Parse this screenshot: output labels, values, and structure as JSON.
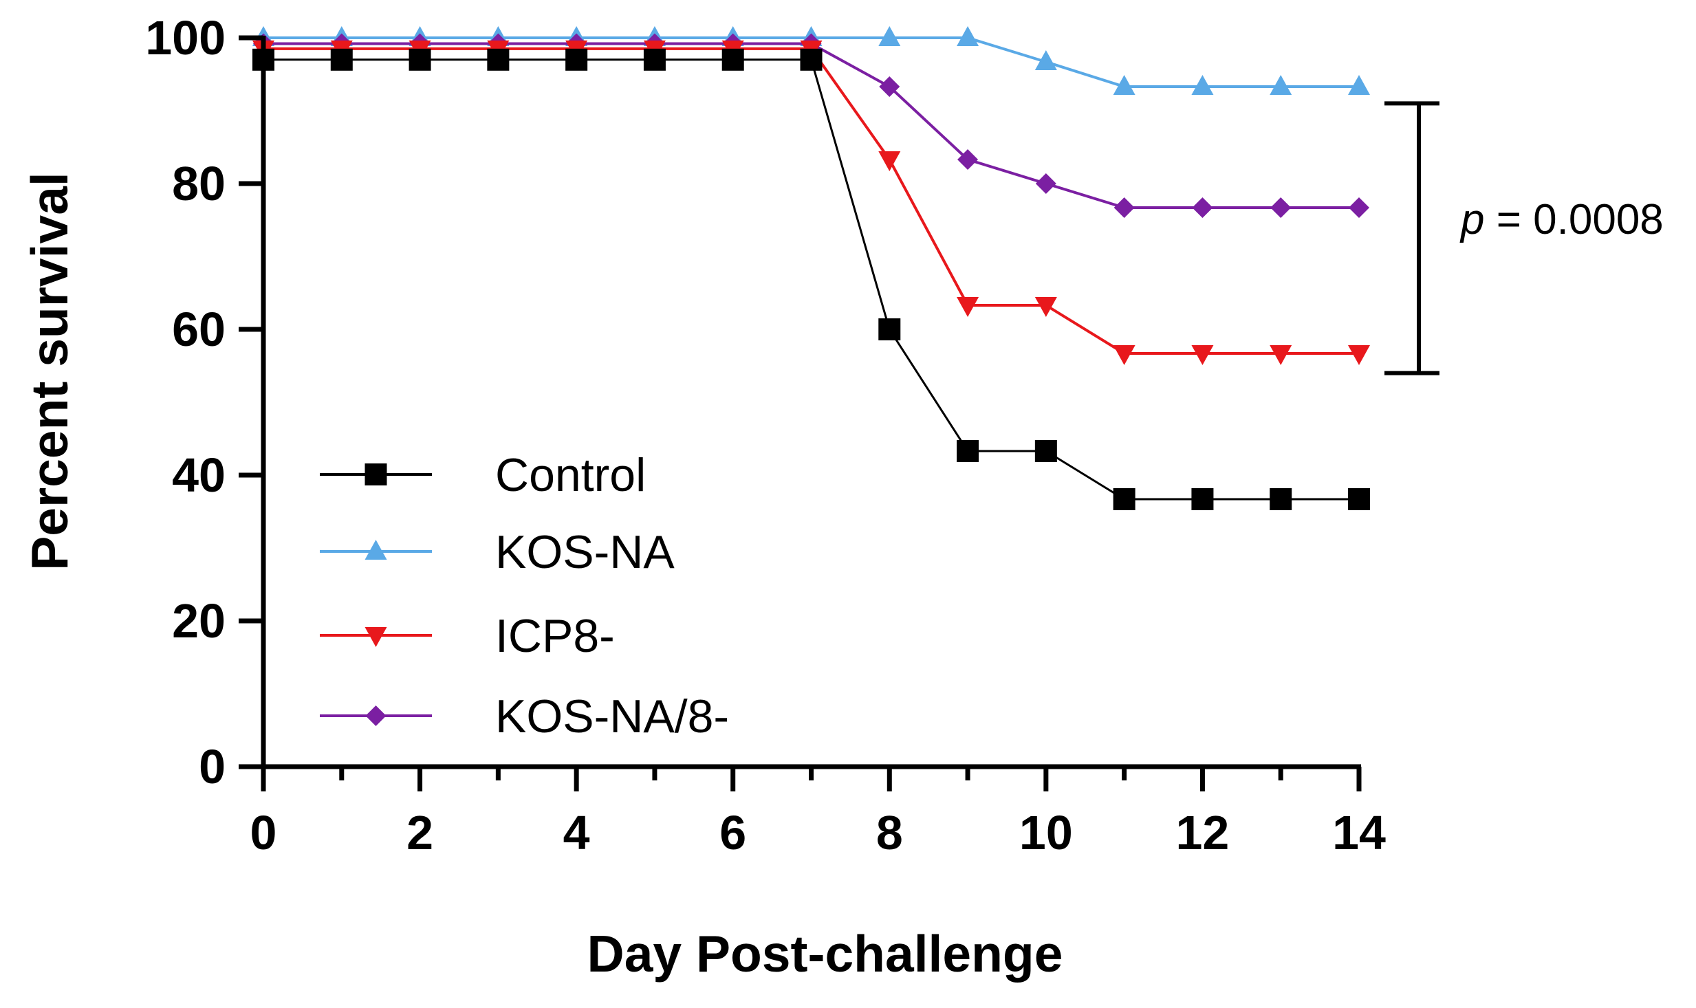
{
  "chart_data": {
    "type": "line",
    "subtype": "survival-step",
    "title": "",
    "xlabel": "Day Post-challenge",
    "ylabel": "Percent survival",
    "xlim": [
      0,
      14
    ],
    "ylim": [
      0,
      100
    ],
    "xticks": [
      0,
      2,
      4,
      6,
      8,
      10,
      12,
      14
    ],
    "yticks": [
      0,
      20,
      40,
      60,
      80,
      100
    ],
    "grid": false,
    "legend_position": "left-center",
    "x": [
      0,
      1,
      2,
      3,
      4,
      5,
      6,
      7,
      8,
      9,
      10,
      11,
      12,
      13,
      14
    ],
    "series": [
      {
        "name": "Control",
        "color": "#000000",
        "marker": "square",
        "values": [
          97,
          97,
          97,
          97,
          97,
          97,
          97,
          97,
          60,
          43.3,
          43.3,
          36.7,
          36.7,
          36.7,
          36.7
        ]
      },
      {
        "name": "KOS-NA",
        "color": "#5aa9e6",
        "marker": "triangle-up",
        "values": [
          100,
          100,
          100,
          100,
          100,
          100,
          100,
          100,
          100,
          100,
          96.7,
          93.3,
          93.3,
          93.3,
          93.3
        ]
      },
      {
        "name": "ICP8-",
        "color": "#e8181c",
        "marker": "triangle-down",
        "values": [
          98.5,
          98.5,
          98.5,
          98.5,
          98.5,
          98.5,
          98.5,
          98.5,
          83.3,
          63.3,
          63.3,
          56.7,
          56.7,
          56.7,
          56.7
        ]
      },
      {
        "name": "KOS-NA/8-",
        "color": "#7b1fa2",
        "marker": "diamond",
        "values": [
          99.2,
          99.2,
          99.2,
          99.2,
          99.2,
          99.2,
          99.2,
          99.2,
          93.3,
          83.3,
          80,
          76.7,
          76.7,
          76.7,
          76.7
        ]
      }
    ],
    "annotations": [
      {
        "text_prefix": "p",
        "text_suffix": " = 0.0008",
        "bracket_y_range": [
          54,
          91
        ]
      }
    ]
  }
}
